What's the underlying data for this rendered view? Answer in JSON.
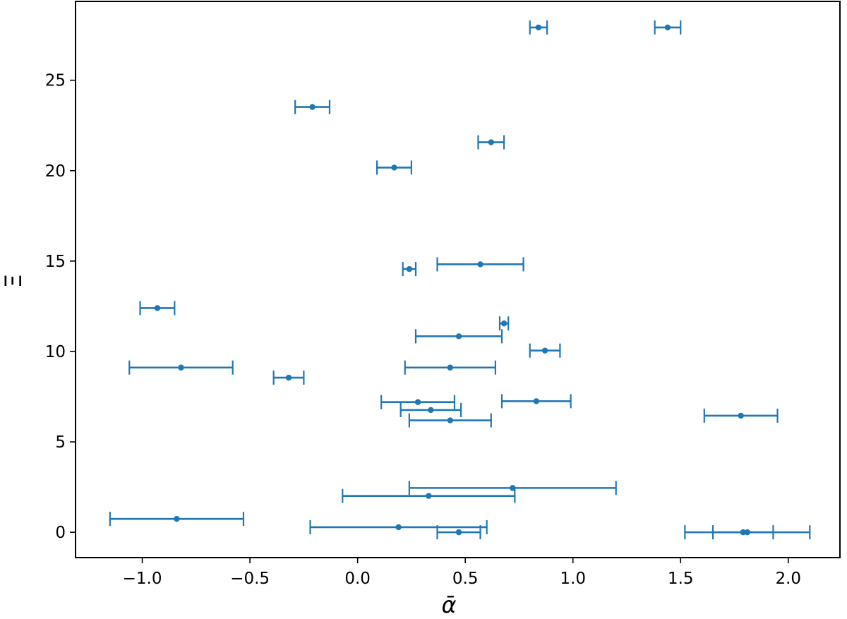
{
  "chart_data": {
    "type": "scatter",
    "title": "",
    "xlabel": "ᾱ",
    "ylabel": "Ξ",
    "xlim": [
      -1.31,
      2.24
    ],
    "ylim": [
      -1.4,
      29.36
    ],
    "grid": false,
    "color": "#1f77b4",
    "x_ticks": [
      {
        "value": -1.0,
        "label": "−1.0"
      },
      {
        "value": -0.5,
        "label": "−0.5"
      },
      {
        "value": 0.0,
        "label": "0.0"
      },
      {
        "value": 0.5,
        "label": "0.5"
      },
      {
        "value": 1.0,
        "label": "1.0"
      },
      {
        "value": 1.5,
        "label": "1.5"
      },
      {
        "value": 2.0,
        "label": "2.0"
      }
    ],
    "y_ticks": [
      {
        "value": 0,
        "label": "0"
      },
      {
        "value": 5,
        "label": "5"
      },
      {
        "value": 10,
        "label": "10"
      },
      {
        "value": 15,
        "label": "15"
      },
      {
        "value": 20,
        "label": "20"
      },
      {
        "value": 25,
        "label": "25"
      }
    ],
    "points": [
      {
        "x": 0.84,
        "xerr": 0.04,
        "y": 27.92
      },
      {
        "x": 1.44,
        "xerr": 0.06,
        "y": 27.92
      },
      {
        "x": -0.21,
        "xerr": 0.08,
        "y": 23.52
      },
      {
        "x": 0.62,
        "xerr": 0.06,
        "y": 21.57
      },
      {
        "x": 0.17,
        "xerr": 0.08,
        "y": 20.17
      },
      {
        "x": 0.24,
        "xerr": 0.03,
        "y": 14.56
      },
      {
        "x": 0.57,
        "xerr": 0.2,
        "y": 14.82
      },
      {
        "x": -0.93,
        "xerr": 0.08,
        "y": 12.4
      },
      {
        "x": 0.68,
        "xerr": 0.02,
        "y": 11.55
      },
      {
        "x": 0.47,
        "xerr": 0.2,
        "y": 10.84
      },
      {
        "x": 0.87,
        "xerr": 0.07,
        "y": 10.05
      },
      {
        "x": -0.82,
        "xerr": 0.24,
        "y": 9.11
      },
      {
        "x": 0.43,
        "xerr": 0.21,
        "y": 9.11
      },
      {
        "x": -0.32,
        "xerr": 0.07,
        "y": 8.55
      },
      {
        "x": 0.28,
        "xerr": 0.17,
        "y": 7.2
      },
      {
        "x": 0.83,
        "xerr": 0.16,
        "y": 7.25
      },
      {
        "x": 0.34,
        "xerr": 0.14,
        "y": 6.76
      },
      {
        "x": 0.43,
        "xerr": 0.19,
        "y": 6.19
      },
      {
        "x": 1.78,
        "xerr": 0.17,
        "y": 6.45
      },
      {
        "x": 0.72,
        "xerr": 0.48,
        "y": 2.45
      },
      {
        "x": 0.33,
        "xerr": 0.4,
        "y": 2.01
      },
      {
        "x": -0.84,
        "xerr": 0.31,
        "y": 0.74
      },
      {
        "x": 0.19,
        "xerr": 0.41,
        "y": 0.28
      },
      {
        "x": 0.47,
        "xerr": 0.1,
        "y": 0.0
      },
      {
        "x": 1.81,
        "xerr": 0.29,
        "y": 0.0
      },
      {
        "x": 1.79,
        "xerr": 0.14,
        "y": 0.0
      }
    ]
  }
}
